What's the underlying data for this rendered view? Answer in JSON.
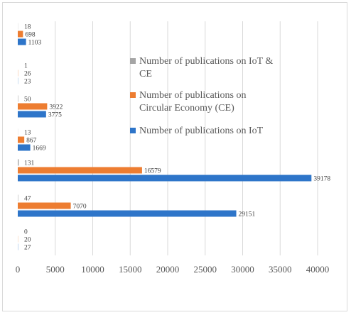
{
  "chart_data": {
    "type": "bar",
    "orientation": "horizontal",
    "title": "",
    "xlabel": "",
    "ylabel": "",
    "xlim": [
      0,
      40000
    ],
    "x_ticks": [
      0,
      5000,
      10000,
      15000,
      20000,
      25000,
      30000,
      35000,
      40000
    ],
    "grid": true,
    "legend_position": "right",
    "series": [
      {
        "name": "Number of publications on IoT & CE",
        "color": "#a5a5a5",
        "values": [
          18,
          1,
          50,
          13,
          131,
          47,
          0
        ]
      },
      {
        "name": "Number of publications on Circular Economy (CE)",
        "color": "#ed7d31",
        "values": [
          698,
          26,
          3922,
          867,
          16579,
          7070,
          20
        ]
      },
      {
        "name": "Number of publications on IoT",
        "color": "#2e75c9",
        "values": [
          1103,
          23,
          3775,
          1669,
          39178,
          29151,
          27
        ]
      }
    ],
    "legend": [
      {
        "lines": [
          "Number of publications on IoT &",
          "CE"
        ],
        "color": "#a5a5a5",
        "icon": "square-swatch-icon"
      },
      {
        "lines": [
          "Number of publications on",
          "Circular Economy (CE)"
        ],
        "color": "#ed7d31",
        "icon": "square-swatch-icon"
      },
      {
        "lines": [
          "Number of publications on IoT"
        ],
        "color": "#2e75c9",
        "icon": "square-swatch-icon"
      }
    ]
  }
}
